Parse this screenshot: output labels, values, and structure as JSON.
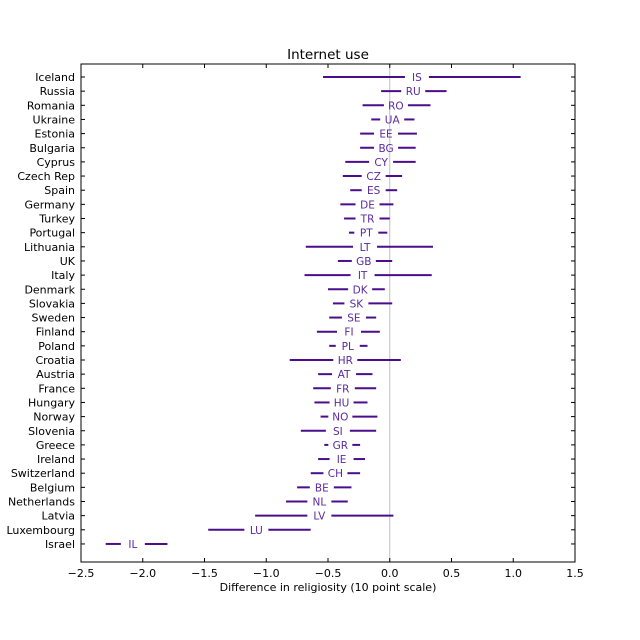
{
  "chart_data": {
    "type": "interval",
    "title": "Internet use",
    "xlabel": "Difference in religiosity (10 point scale)",
    "ylabel": "",
    "xlim": [
      -2.5,
      1.5
    ],
    "xticks": [
      -2.5,
      -2.0,
      -1.5,
      -1.0,
      -0.5,
      0.0,
      0.5,
      1.0,
      1.5
    ],
    "xtick_labels": [
      "−2.5",
      "−2.0",
      "−1.5",
      "−1.0",
      "−0.5",
      "0.0",
      "0.5",
      "1.0",
      "1.5"
    ],
    "reference_line_x": 0,
    "grid": false,
    "colors": {
      "interval": "#4b0d8c",
      "label": "#5a2aa0",
      "reference": "#c0c0c0"
    },
    "rows": [
      {
        "country": "Iceland",
        "code": "IS",
        "low": -0.54,
        "high": 1.06,
        "center": 0.22
      },
      {
        "country": "Russia",
        "code": "RU",
        "low": -0.07,
        "high": 0.46,
        "center": 0.19
      },
      {
        "country": "Romania",
        "code": "RO",
        "low": -0.22,
        "high": 0.33,
        "center": 0.05
      },
      {
        "country": "Ukraine",
        "code": "UA",
        "low": -0.15,
        "high": 0.2,
        "center": 0.02
      },
      {
        "country": "Estonia",
        "code": "EE",
        "low": -0.24,
        "high": 0.22,
        "center": -0.03
      },
      {
        "country": "Bulgaria",
        "code": "BG",
        "low": -0.24,
        "high": 0.21,
        "center": -0.03
      },
      {
        "country": "Cyprus",
        "code": "CY",
        "low": -0.36,
        "high": 0.21,
        "center": -0.07
      },
      {
        "country": "Czech Rep",
        "code": "CZ",
        "low": -0.38,
        "high": 0.1,
        "center": -0.13
      },
      {
        "country": "Spain",
        "code": "ES",
        "low": -0.32,
        "high": 0.06,
        "center": -0.13
      },
      {
        "country": "Germany",
        "code": "DE",
        "low": -0.4,
        "high": 0.03,
        "center": -0.18
      },
      {
        "country": "Turkey",
        "code": "TR",
        "low": -0.37,
        "high": 0.0,
        "center": -0.18
      },
      {
        "country": "Portugal",
        "code": "PT",
        "low": -0.33,
        "high": -0.02,
        "center": -0.19
      },
      {
        "country": "Lithuania",
        "code": "LT",
        "low": -0.68,
        "high": 0.35,
        "center": -0.2
      },
      {
        "country": "UK",
        "code": "GB",
        "low": -0.42,
        "high": 0.02,
        "center": -0.21
      },
      {
        "country": "Italy",
        "code": "IT",
        "low": -0.69,
        "high": 0.34,
        "center": -0.22
      },
      {
        "country": "Denmark",
        "code": "DK",
        "low": -0.5,
        "high": -0.04,
        "center": -0.24
      },
      {
        "country": "Slovakia",
        "code": "SK",
        "low": -0.46,
        "high": 0.02,
        "center": -0.27
      },
      {
        "country": "Sweden",
        "code": "SE",
        "low": -0.49,
        "high": -0.11,
        "center": -0.29
      },
      {
        "country": "Finland",
        "code": "FI",
        "low": -0.59,
        "high": -0.08,
        "center": -0.33
      },
      {
        "country": "Poland",
        "code": "PL",
        "low": -0.49,
        "high": -0.18,
        "center": -0.34
      },
      {
        "country": "Croatia",
        "code": "HR",
        "low": -0.81,
        "high": 0.09,
        "center": -0.36
      },
      {
        "country": "Austria",
        "code": "AT",
        "low": -0.58,
        "high": -0.14,
        "center": -0.37
      },
      {
        "country": "France",
        "code": "FR",
        "low": -0.62,
        "high": -0.11,
        "center": -0.38
      },
      {
        "country": "Hungary",
        "code": "HU",
        "low": -0.61,
        "high": -0.18,
        "center": -0.39
      },
      {
        "country": "Norway",
        "code": "NO",
        "low": -0.56,
        "high": -0.1,
        "center": -0.4
      },
      {
        "country": "Slovenia",
        "code": "SI",
        "low": -0.72,
        "high": -0.11,
        "center": -0.42
      },
      {
        "country": "Greece",
        "code": "GR",
        "low": -0.53,
        "high": -0.24,
        "center": -0.4
      },
      {
        "country": "Ireland",
        "code": "IE",
        "low": -0.58,
        "high": -0.2,
        "center": -0.39
      },
      {
        "country": "Switzerland",
        "code": "CH",
        "low": -0.64,
        "high": -0.24,
        "center": -0.44
      },
      {
        "country": "Belgium",
        "code": "BE",
        "low": -0.75,
        "high": -0.31,
        "center": -0.55
      },
      {
        "country": "Netherlands",
        "code": "NL",
        "low": -0.84,
        "high": -0.34,
        "center": -0.57
      },
      {
        "country": "Latvia",
        "code": "LV",
        "low": -1.09,
        "high": 0.03,
        "center": -0.57
      },
      {
        "country": "Luxembourg",
        "code": "LU",
        "low": -1.47,
        "high": -0.64,
        "center": -1.08
      },
      {
        "country": "Israel",
        "code": "IL",
        "low": -2.3,
        "high": -1.8,
        "center": -2.08
      }
    ]
  }
}
